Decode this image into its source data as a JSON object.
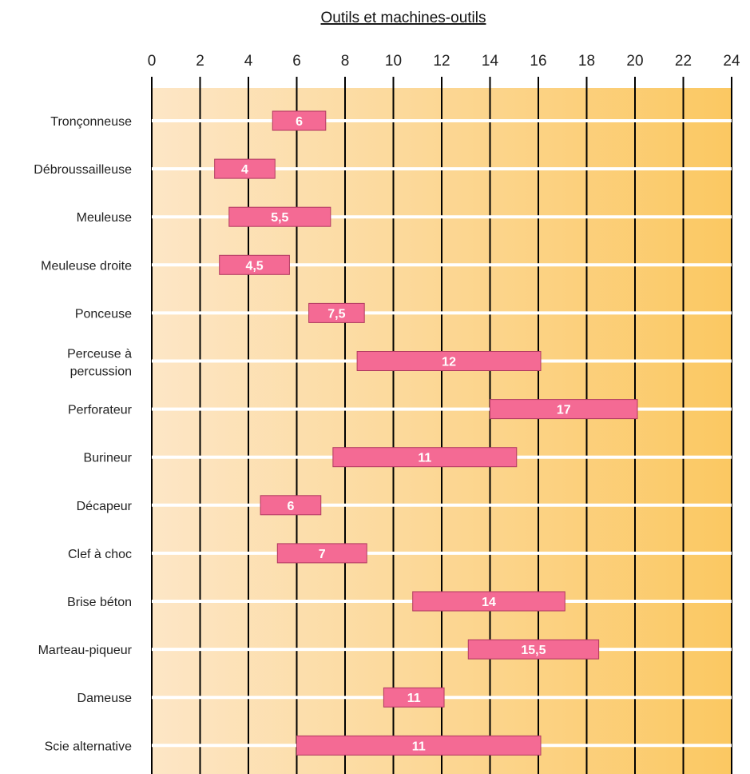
{
  "chart_data": {
    "type": "bar",
    "orientation": "horizontal",
    "title": "Outils et machines-outils",
    "xlabel": "",
    "ylabel": "",
    "xlim": [
      0,
      24
    ],
    "x_ticks": [
      "0",
      "2",
      "4",
      "6",
      "8",
      "10",
      "12",
      "14",
      "16",
      "18",
      "20",
      "22",
      "24"
    ],
    "grid": true,
    "bar_color": "#f46a94",
    "bar_border_color": "#b03a60",
    "background_gradient": [
      "#fde6c6",
      "#fbc862"
    ],
    "categories": [
      {
        "label": "Tronçonneuse",
        "value_label": "6",
        "start": 5,
        "end": 7.2
      },
      {
        "label": "Débroussailleuse",
        "value_label": "4",
        "start": 2.6,
        "end": 5.1
      },
      {
        "label": "Meuleuse",
        "value_label": "5,5",
        "start": 3.2,
        "end": 7.4
      },
      {
        "label": "Meuleuse droite",
        "value_label": "4,5",
        "start": 2.8,
        "end": 5.7
      },
      {
        "label": "Ponceuse",
        "value_label": "7,5",
        "start": 6.5,
        "end": 8.8
      },
      {
        "label": "Perceuse à percussion",
        "value_label": "12",
        "start": 8.5,
        "end": 16.1
      },
      {
        "label": "Perforateur",
        "value_label": "17",
        "start": 14.0,
        "end": 20.1
      },
      {
        "label": "Burineur",
        "value_label": "11",
        "start": 7.5,
        "end": 15.1
      },
      {
        "label": "Décapeur",
        "value_label": "6",
        "start": 4.5,
        "end": 7.0
      },
      {
        "label": "Clef à choc",
        "value_label": "7",
        "start": 5.2,
        "end": 8.9
      },
      {
        "label": "Brise béton",
        "value_label": "14",
        "start": 10.8,
        "end": 17.1
      },
      {
        "label": "Marteau-piqueur",
        "value_label": "15,5",
        "start": 13.1,
        "end": 18.5
      },
      {
        "label": "Dameuse",
        "value_label": "11",
        "start": 9.6,
        "end": 12.1
      },
      {
        "label": "Scie alternative",
        "value_label": "11",
        "start": 6.0,
        "end": 16.1
      }
    ]
  }
}
